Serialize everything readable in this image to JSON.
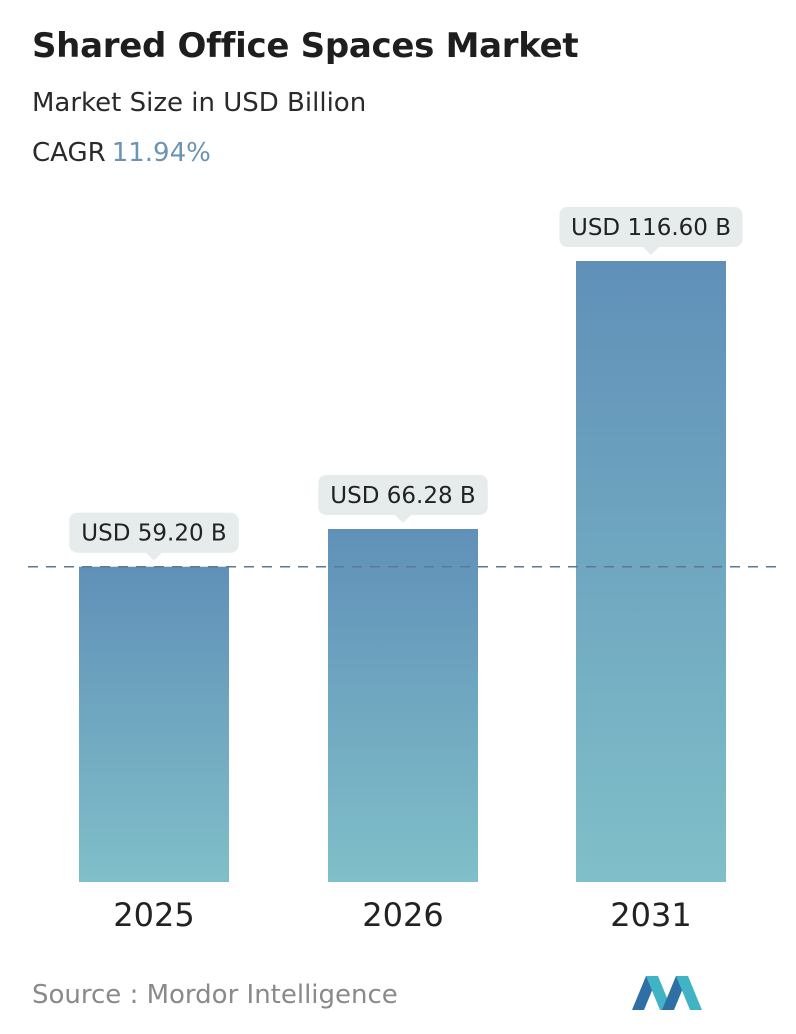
{
  "header": {
    "title": "Shared Office Spaces Market",
    "subtitle": "Market Size in USD Billion",
    "cagr_label": "CAGR",
    "cagr_value": "11.94%"
  },
  "footer": {
    "source": "Source :  Mordor Intelligence"
  },
  "colors": {
    "bar_top": "#6090b8",
    "bar_bottom": "#80bfc9",
    "label_bg": "#e6ecec",
    "dashed_line": "#5a7a94",
    "cagr_accent": "#6b93b4"
  },
  "chart_data": {
    "type": "bar",
    "categories": [
      "2025",
      "2026",
      "2031"
    ],
    "values": [
      59.2,
      66.28,
      116.6
    ],
    "data_labels": [
      "USD 59.20 B",
      "USD 66.28 B",
      "USD 116.60 B"
    ],
    "title": "Shared Office Spaces Market",
    "ylabel": "Market Size in USD Billion",
    "ylim": [
      0,
      116.6
    ],
    "grid": false,
    "reference_line": 59.2
  }
}
